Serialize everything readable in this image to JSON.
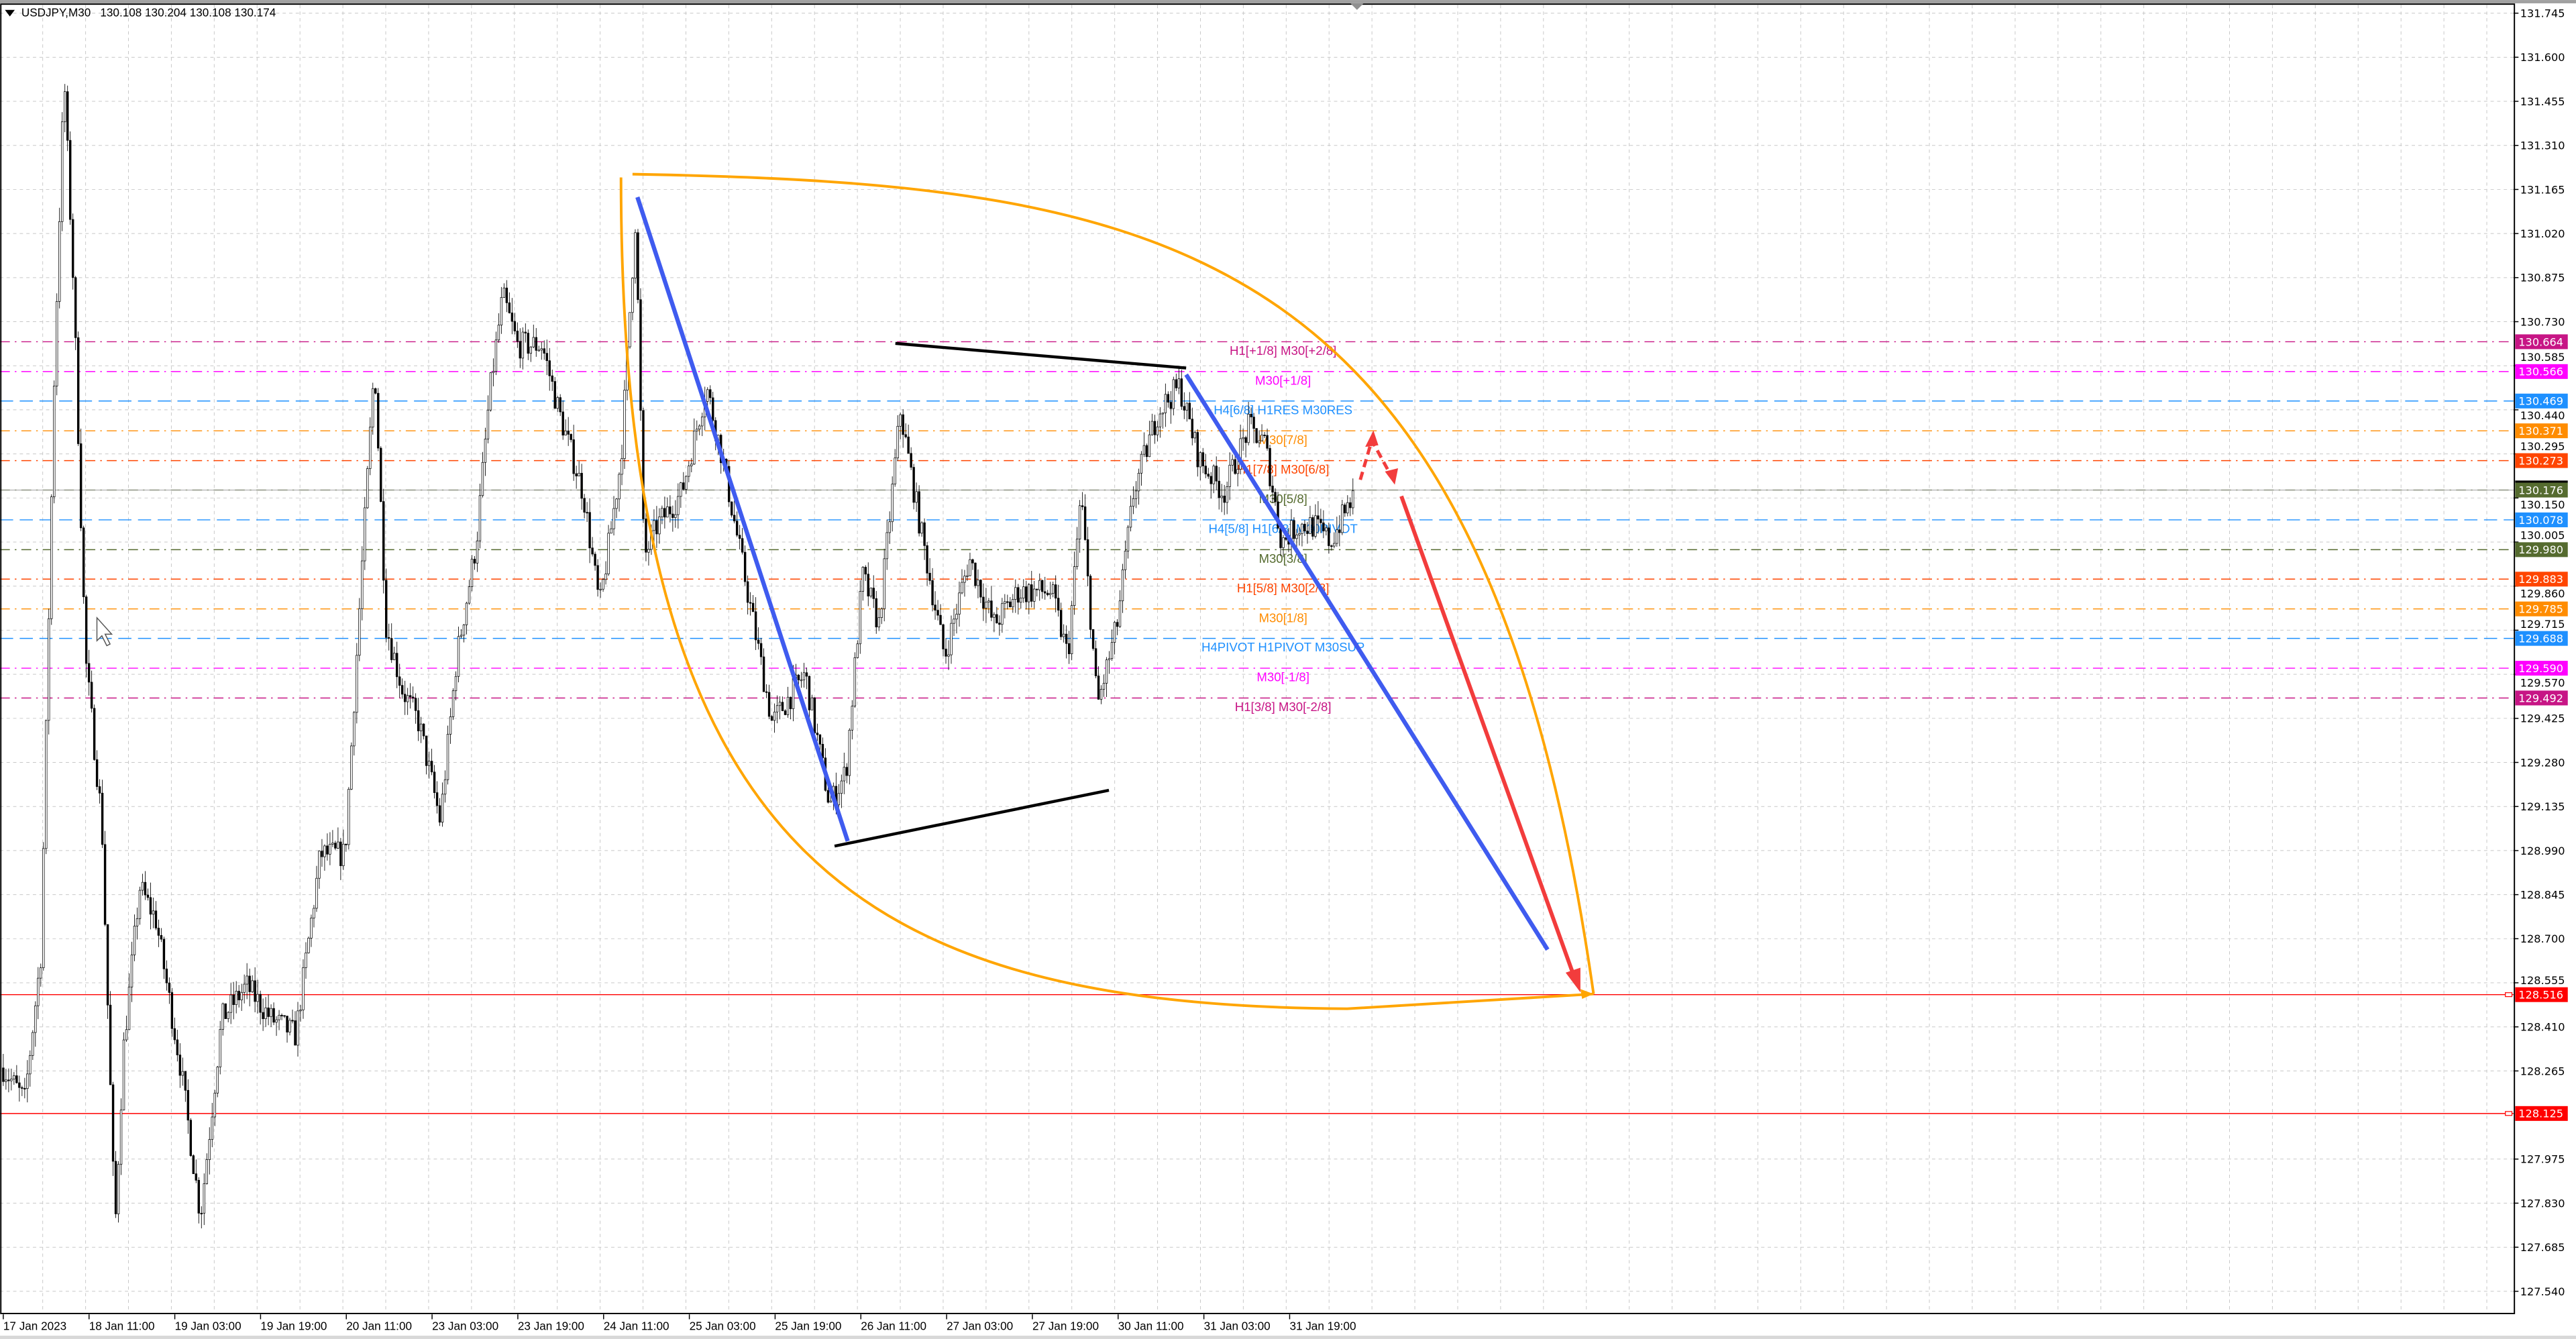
{
  "header": {
    "symbol": "USDJPY,M30",
    "ohlc": "130.108 130.204 130.108 130.174",
    "menu_icon": "triangle-down-icon"
  },
  "colors": {
    "background": "#ffffff",
    "grid": "#c8c8c8",
    "bull_candle": "#ffffff",
    "bear_candle": "#000000",
    "channel_curve": "#ffa500",
    "trend_lines": "#3f5bef",
    "wedge_lines": "#000000",
    "forecast_arrow": "#f23c3c"
  },
  "chart_data": {
    "type": "candlestick",
    "symbol": "USDJPY",
    "timeframe": "M30",
    "grid": true,
    "ylim": [
      127.5,
      131.78
    ],
    "y_ticks": [
      "131.745",
      "131.600",
      "131.455",
      "131.310",
      "131.165",
      "131.020",
      "130.875",
      "130.730",
      "130.585",
      "130.440",
      "130.295",
      "130.150",
      "130.005",
      "129.860",
      "129.715",
      "129.570",
      "129.425",
      "129.280",
      "129.135",
      "128.990",
      "128.845",
      "128.700",
      "128.555",
      "128.410",
      "128.265",
      "127.975",
      "127.830",
      "127.685",
      "127.540"
    ],
    "x_ticks": [
      "17 Jan 2023",
      "18 Jan 11:00",
      "19 Jan 03:00",
      "19 Jan 19:00",
      "20 Jan 11:00",
      "23 Jan 03:00",
      "23 Jan 19:00",
      "24 Jan 11:00",
      "25 Jan 03:00",
      "25 Jan 19:00",
      "26 Jan 11:00",
      "27 Jan 03:00",
      "27 Jan 19:00",
      "30 Jan 11:00",
      "31 Jan 03:00",
      "31 Jan 19:00"
    ],
    "approx_price_path": [
      128.275,
      128.167,
      128.653,
      130.545,
      131.545,
      130.815,
      129.626,
      129.086,
      127.734,
      128.329,
      128.87,
      128.761,
      128.275,
      127.789,
      128.437,
      128.545,
      128.437,
      128.383,
      128.978,
      128.978,
      129.896,
      130.599,
      129.734,
      129.518,
      129.41,
      129.086,
      129.626,
      130.005,
      130.491,
      130.815,
      130.653,
      130.653,
      130.437,
      130.167,
      129.788,
      130.275,
      131.086,
      129.951,
      130.059,
      130.167,
      130.518,
      130.275,
      129.842,
      129.41,
      129.572,
      129.14,
      129.248,
      129.896,
      129.734,
      130.437,
      130.059,
      129.626,
      129.951,
      129.734,
      129.842,
      129.842,
      129.626,
      130.167,
      129.464,
      129.734,
      130.167,
      130.437,
      130.518,
      130.275,
      130.167,
      130.383,
      130.329,
      130.005,
      130.059,
      130.059,
      130.005,
      130.174
    ],
    "last_price": "130.176",
    "levels": [
      {
        "price": "130.664",
        "label": "H1[+1/8] M30[+2/8]",
        "color": "#c71585",
        "style": "dashdot"
      },
      {
        "price": "130.566",
        "label": "M30[+1/8]",
        "color": "#ff00ff",
        "style": "dashdot"
      },
      {
        "price": "130.469",
        "label": "H4[6/8] H1RES M30RES",
        "color": "#1e90ff",
        "style": "dash"
      },
      {
        "price": "130.371",
        "label": "M30[7/8]",
        "color": "#ff8c00",
        "style": "dashdot"
      },
      {
        "price": "130.273",
        "label": "H1[7/8] M30[6/8]",
        "color": "#ff4500",
        "style": "dashdot"
      },
      {
        "price": "130.176",
        "label": "M30[5/8]",
        "color": "#556b2f",
        "style": "dashdot"
      },
      {
        "price": "130.078",
        "label": "H4[5/8] H1[6/8] M30PIVOT",
        "color": "#1e90ff",
        "style": "dash"
      },
      {
        "price": "129.980",
        "label": "M30[3/8]",
        "color": "#556b2f",
        "style": "dashdot"
      },
      {
        "price": "129.883",
        "label": "H1[5/8] M30[2/8]",
        "color": "#ff4500",
        "style": "dashdot"
      },
      {
        "price": "129.785",
        "label": "M30[1/8]",
        "color": "#ff8c00",
        "style": "dashdot"
      },
      {
        "price": "129.688",
        "label": "H4PIVOT H1PIVOT M30SUP",
        "color": "#1e90ff",
        "style": "dash"
      },
      {
        "price": "129.590",
        "label": "M30[-1/8]",
        "color": "#ff00ff",
        "style": "dashdot"
      },
      {
        "price": "129.492",
        "label": "H1[3/8] M30[-2/8]",
        "color": "#c71585",
        "style": "dashdot"
      }
    ],
    "horizontal_lines": [
      {
        "price": "128.516",
        "color": "#ff0000"
      },
      {
        "price": "128.125",
        "color": "#ff0000"
      }
    ]
  }
}
